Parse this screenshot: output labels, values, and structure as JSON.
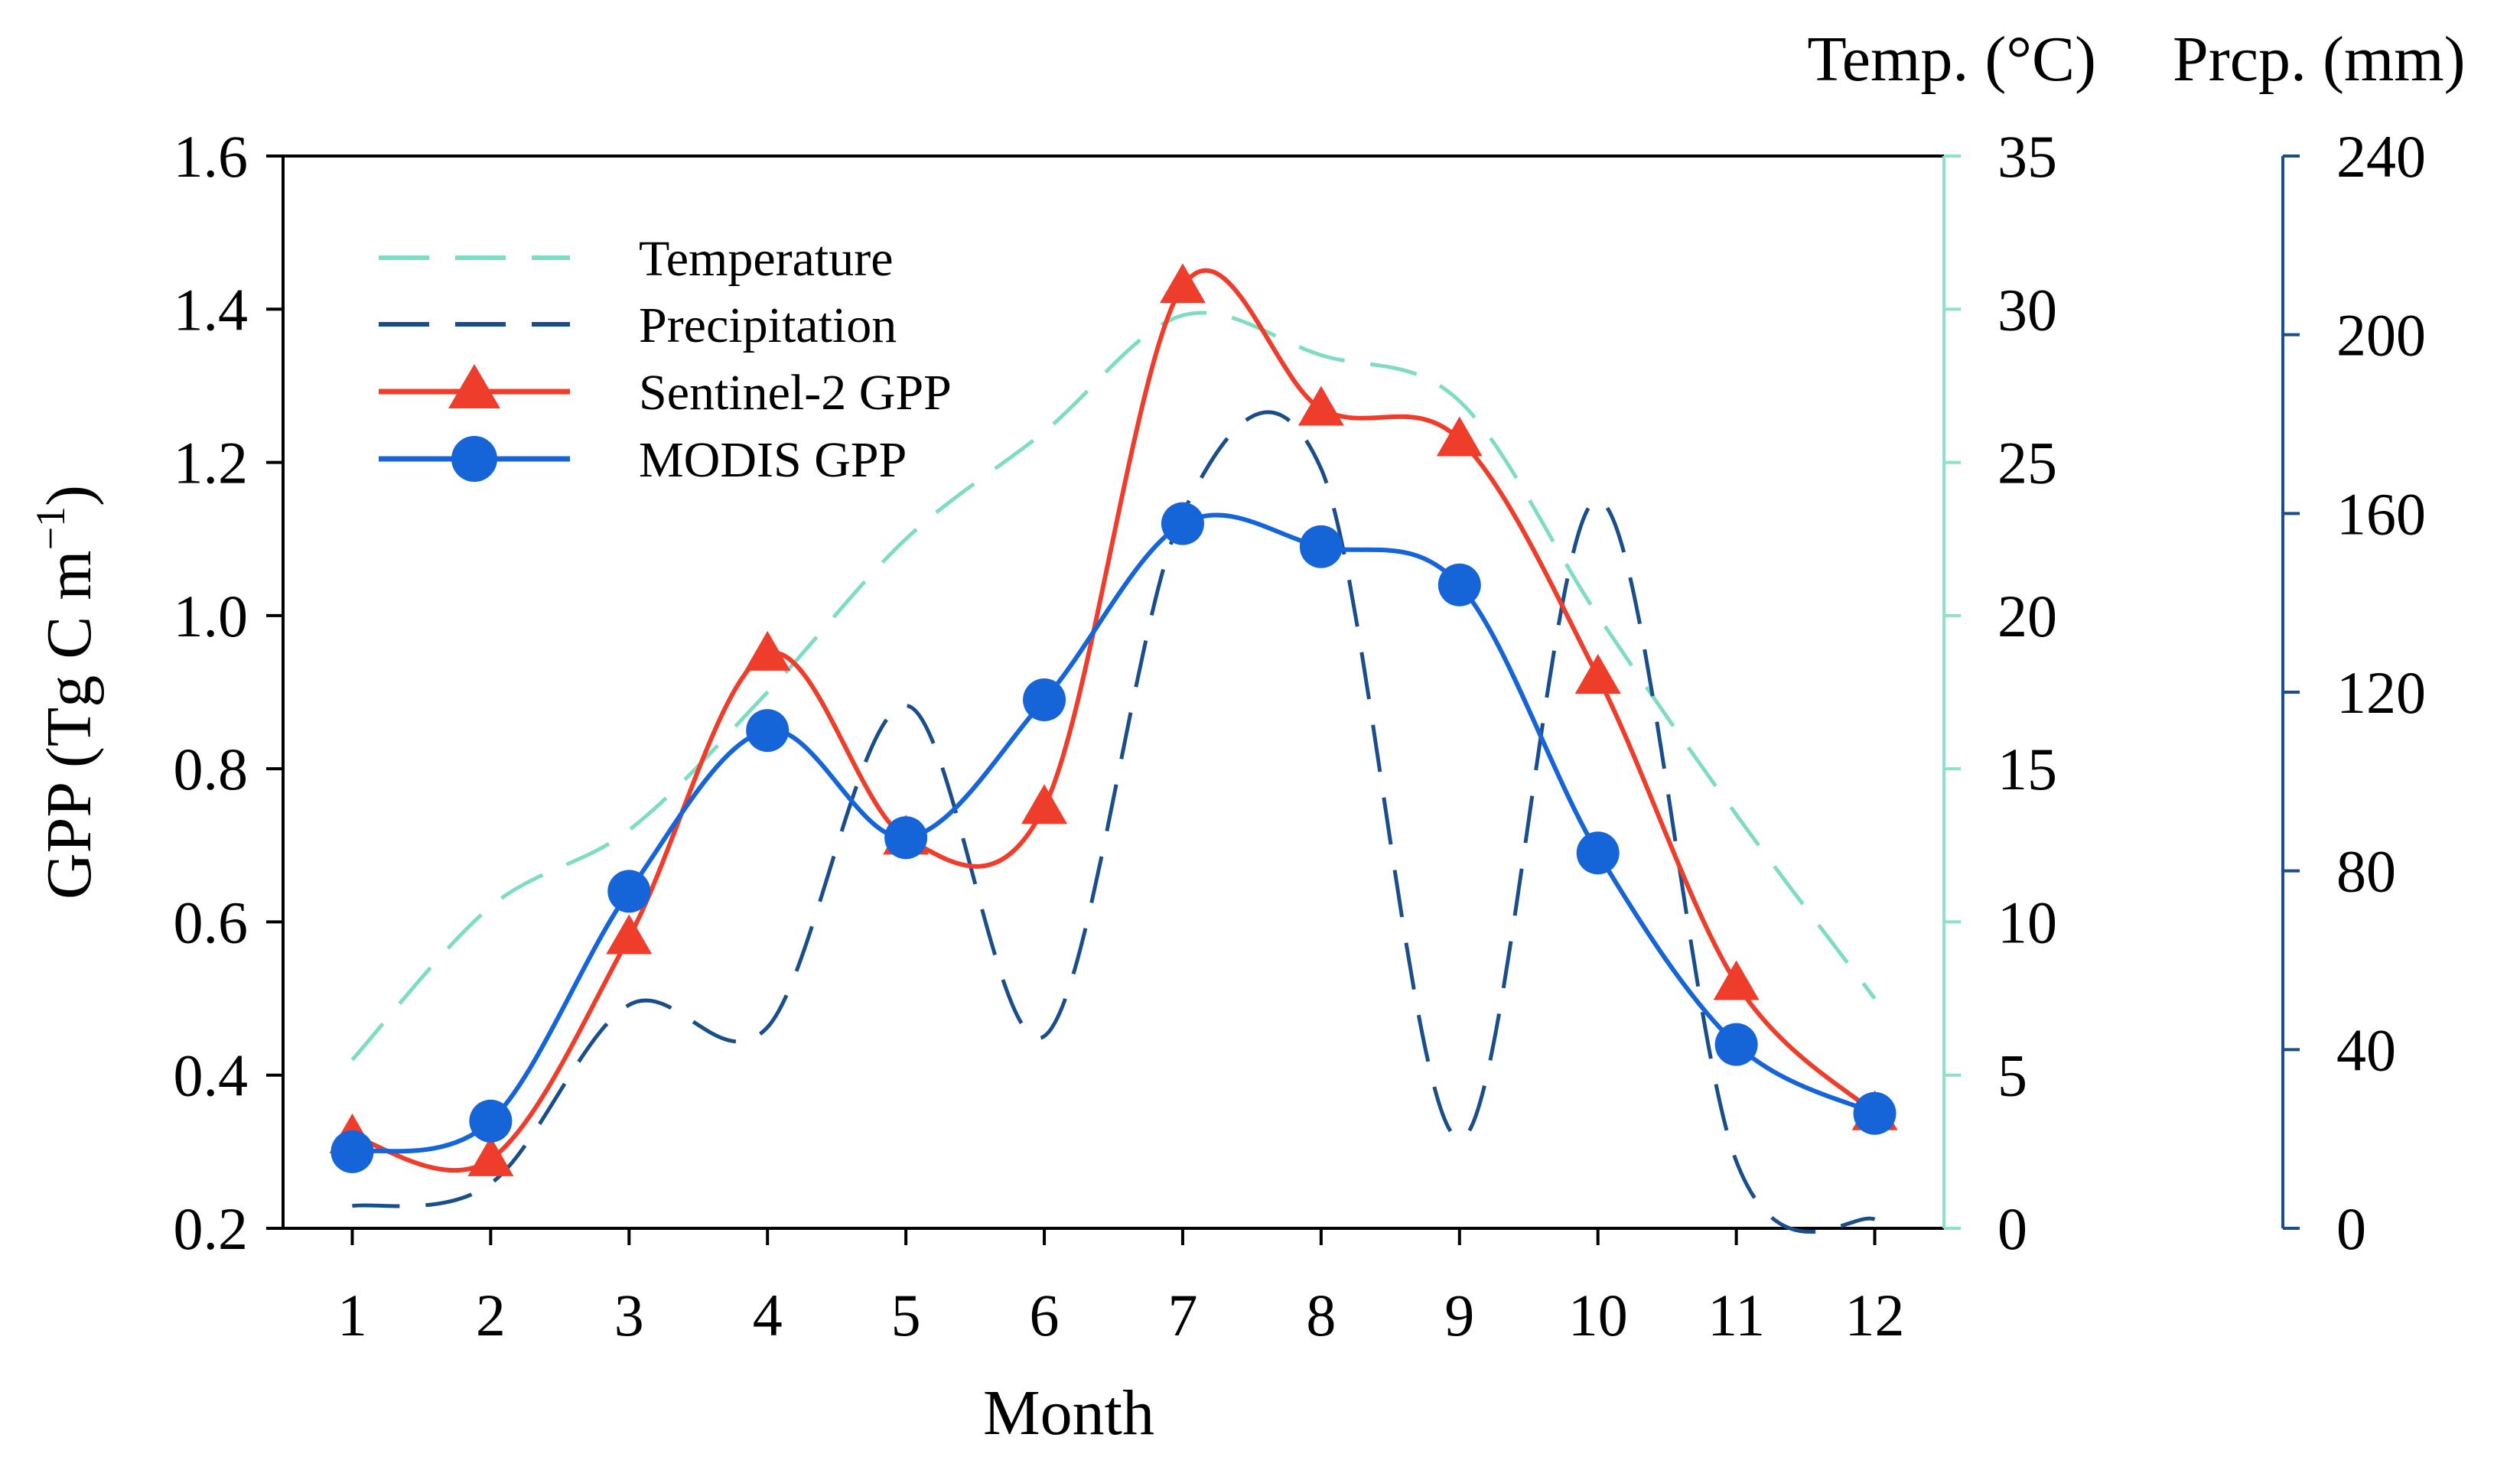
{
  "chart_data": {
    "type": "line",
    "x": [
      1,
      2,
      3,
      4,
      5,
      6,
      7,
      8,
      9,
      10,
      11,
      12
    ],
    "xlabel": "Month",
    "ylabel": "GPP (Tg C m",
    "ylabel_sup": "−1",
    "ylabel_close": ")",
    "temp_axis_title": "Temp. (°C)",
    "prcp_axis_title": "Prcp. (mm)",
    "xlim": [
      0.5,
      12.5
    ],
    "ylim": [
      0.2,
      1.6
    ],
    "ylim_temp": [
      0,
      35
    ],
    "ylim_prcp": [
      0,
      240
    ],
    "x_ticks": [
      "1",
      "2",
      "3",
      "4",
      "5",
      "6",
      "7",
      "8",
      "9",
      "10",
      "11",
      "12"
    ],
    "y_ticks": [
      "0.2",
      "0.4",
      "0.6",
      "0.8",
      "1.0",
      "1.2",
      "1.4",
      "1.6"
    ],
    "temp_ticks": [
      "0",
      "5",
      "10",
      "15",
      "20",
      "25",
      "30",
      "35"
    ],
    "prcp_ticks": [
      "0",
      "40",
      "80",
      "120",
      "160",
      "200",
      "240"
    ],
    "legend_position": "top-left",
    "series": [
      {
        "name": "Temperature",
        "axis": "temp",
        "style": "dashed",
        "color": "#7fdcc4",
        "values": [
          5.5,
          10.5,
          13,
          17.5,
          22.5,
          26,
          29.8,
          28.5,
          27,
          20,
          13.5,
          7.5
        ]
      },
      {
        "name": "Precipitation",
        "axis": "prcp",
        "style": "dashed",
        "color": "#1a4e8a",
        "values": [
          5,
          10,
          50,
          45,
          117,
          43,
          160,
          170,
          20,
          163,
          15,
          2
        ]
      },
      {
        "name": "Sentinel-2 GPP",
        "axis": "gpp",
        "style": "solid",
        "marker": "triangle",
        "color": "#ef3d2c",
        "values": [
          0.32,
          0.29,
          0.58,
          0.95,
          0.71,
          0.75,
          1.43,
          1.27,
          1.23,
          0.92,
          0.52,
          0.35
        ]
      },
      {
        "name": "MODIS GPP",
        "axis": "gpp",
        "style": "solid",
        "marker": "circle",
        "color": "#1565d8",
        "values": [
          0.3,
          0.34,
          0.64,
          0.85,
          0.71,
          0.89,
          1.12,
          1.09,
          1.04,
          0.69,
          0.44,
          0.35
        ]
      }
    ]
  }
}
